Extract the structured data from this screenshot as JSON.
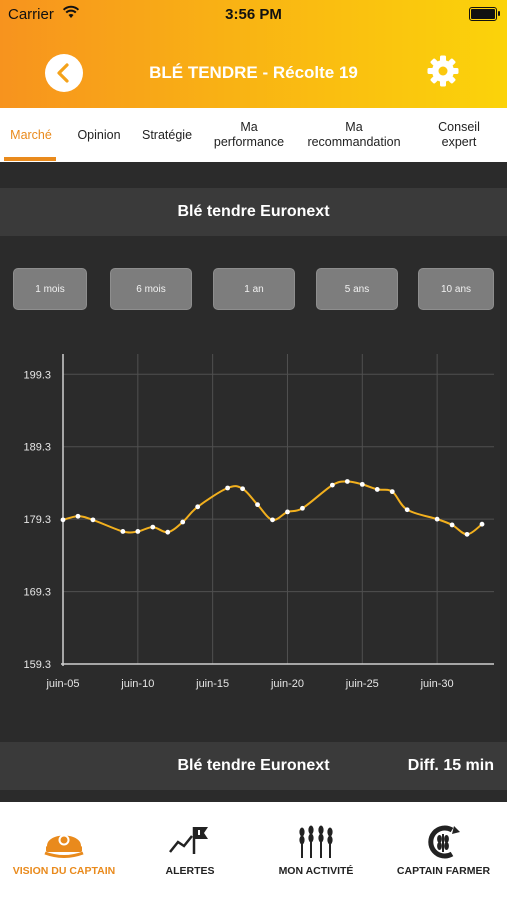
{
  "status_bar": {
    "carrier": "Carrier",
    "time": "3:56 PM"
  },
  "header": {
    "title": "BLÉ TENDRE - Récolte 19"
  },
  "tabs": [
    {
      "label": "Marché"
    },
    {
      "label": "Opinion"
    },
    {
      "label": "Stratégie"
    },
    {
      "label": "Ma performance"
    },
    {
      "label": "Ma recommandation"
    },
    {
      "label": "Conseil expert"
    }
  ],
  "section_title": "Blé tendre Euronext",
  "ranges": [
    "1 mois",
    "6 mois",
    "1 an",
    "5 ans",
    "10 ans"
  ],
  "footer": {
    "title": "Blé tendre Euronext",
    "delay": "Diff. 15 min"
  },
  "chart_data": {
    "type": "line",
    "x_ticks": [
      "juin-05",
      "juin-10",
      "juin-15",
      "juin-20",
      "juin-25",
      "juin-30"
    ],
    "y_ticks": [
      "199.3",
      "189.3",
      "179.3",
      "169.3",
      "159.3"
    ],
    "ylim": [
      159.3,
      202.1
    ],
    "xlim": [
      5,
      33.8
    ],
    "x": [
      5,
      6,
      7,
      9,
      10,
      11,
      12,
      13,
      14,
      16,
      17,
      18,
      19,
      20,
      21,
      23,
      24,
      25,
      26,
      27,
      28,
      30,
      31,
      32,
      33
    ],
    "values": [
      179.2,
      179.7,
      179.2,
      177.6,
      177.6,
      178.2,
      177.5,
      178.9,
      181.0,
      183.6,
      183.5,
      181.3,
      179.2,
      180.3,
      180.8,
      184.0,
      184.5,
      184.1,
      183.4,
      183.1,
      180.6,
      179.3,
      178.5,
      177.2,
      178.6
    ],
    "line_color": "#f2b01e",
    "grid": true
  },
  "bottom_nav": [
    {
      "label": "VISION DU CAPTAIN",
      "icon": "captain-hat-icon",
      "active": true
    },
    {
      "label": "ALERTES",
      "icon": "alert-flag-icon",
      "active": false
    },
    {
      "label": "MON ACTIVITÉ",
      "icon": "wheat-icon",
      "active": false
    },
    {
      "label": "CAPTAIN FARMER",
      "icon": "captain-farmer-logo-icon",
      "active": false
    }
  ]
}
